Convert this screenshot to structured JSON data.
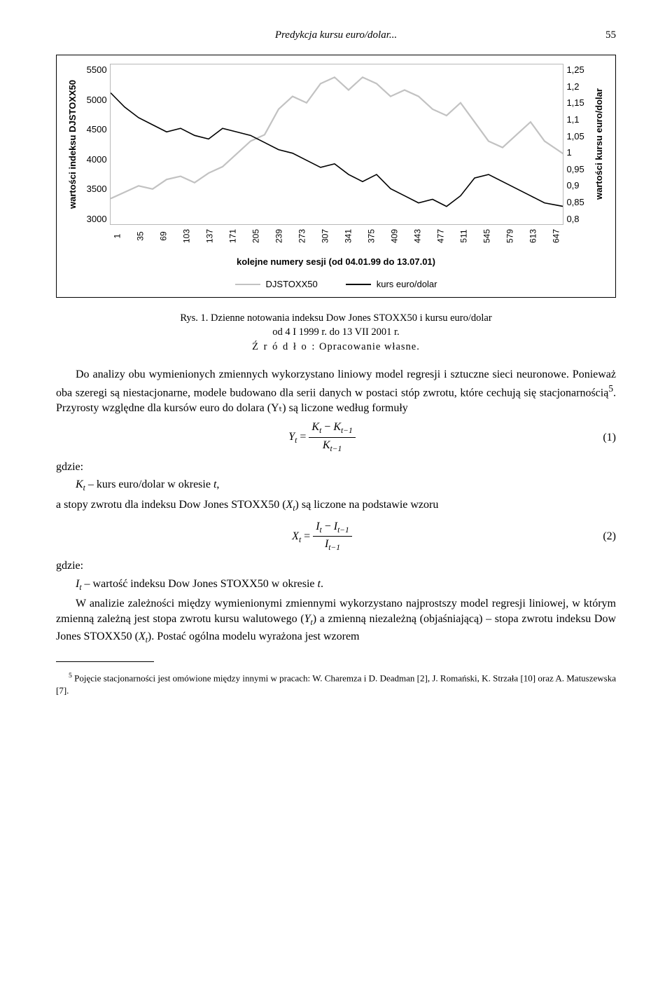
{
  "header": {
    "running_title": "Predykcja kursu euro/dolar...",
    "page_number": "55"
  },
  "chart": {
    "type": "line",
    "y_left": {
      "label": "wartości indeksu DJSTOXX50",
      "ticks": [
        "5500",
        "5000",
        "4500",
        "4000",
        "3500",
        "3000"
      ],
      "min": 3000,
      "max": 5500
    },
    "y_right": {
      "label": "wartości kursu euro/dolar",
      "ticks": [
        "1,25",
        "1,2",
        "1,15",
        "1,1",
        "1,05",
        "1",
        "0,95",
        "0,9",
        "0,85",
        "0,8"
      ],
      "min": 0.8,
      "max": 1.25
    },
    "x_ticks": [
      "1",
      "35",
      "69",
      "103",
      "137",
      "171",
      "205",
      "239",
      "273",
      "307",
      "341",
      "375",
      "409",
      "443",
      "477",
      "511",
      "545",
      "579",
      "613",
      "647"
    ],
    "x_axis_label": "kolejne numery sesji (od 04.01.99 do 13.07.01)",
    "series": [
      {
        "name": "DJSTOXX50",
        "color": "#c2c2c2",
        "width": 2.2,
        "x": [
          0,
          20,
          40,
          60,
          80,
          100,
          120,
          140,
          160,
          180,
          200,
          220,
          240,
          260,
          280,
          300,
          320,
          340,
          360,
          380,
          400,
          420,
          440,
          460,
          480,
          500,
          520,
          540,
          560,
          580,
          600,
          620,
          647
        ],
        "y_axis": "left",
        "y": [
          3400,
          3500,
          3600,
          3550,
          3700,
          3750,
          3650,
          3800,
          3900,
          4100,
          4300,
          4400,
          4800,
          5000,
          4900,
          5200,
          5300,
          5100,
          5300,
          5200,
          5000,
          5100,
          5000,
          4800,
          4700,
          4900,
          4600,
          4300,
          4200,
          4400,
          4600,
          4300,
          4100
        ]
      },
      {
        "name": "kurs euro/dolar",
        "color": "#000000",
        "width": 1.6,
        "x": [
          0,
          20,
          40,
          60,
          80,
          100,
          120,
          140,
          160,
          180,
          200,
          220,
          240,
          260,
          280,
          300,
          320,
          340,
          360,
          380,
          400,
          420,
          440,
          460,
          480,
          500,
          520,
          540,
          560,
          580,
          600,
          620,
          647
        ],
        "y_axis": "right",
        "y": [
          1.17,
          1.13,
          1.1,
          1.08,
          1.06,
          1.07,
          1.05,
          1.04,
          1.07,
          1.06,
          1.05,
          1.03,
          1.01,
          1.0,
          0.98,
          0.96,
          0.97,
          0.94,
          0.92,
          0.94,
          0.9,
          0.88,
          0.86,
          0.87,
          0.85,
          0.88,
          0.93,
          0.94,
          0.92,
          0.9,
          0.88,
          0.86,
          0.85
        ]
      }
    ],
    "legend": [
      {
        "label": "DJSTOXX50",
        "color": "#c2c2c2"
      },
      {
        "label": "kurs euro/dolar",
        "color": "#000000"
      }
    ],
    "background_color": "#ffffff",
    "border_color": "#b8b8b8"
  },
  "figure_caption": {
    "line1": "Rys. 1. Dzienne notowania indeksu Dow Jones STOXX50 i kursu euro/dolar",
    "line2": "od 4 I 1999 r. do 13 VII 2001 r.",
    "source_label": "Ź r ó d ł o :",
    "source_text": "Opracowanie własne."
  },
  "body": {
    "para1": "Do analizy obu wymienionych zmiennych wykorzystano liniowy model regresji i sztuczne sieci neuronowe. Ponieważ oba szeregi są niestacjonarne, modele budowano dla serii danych w postaci stóp zwrotu, które cechują się stacjonarnością",
    "para1_fn_mark": "5",
    "para1_cont": ". Przyrosty względne dla kursów euro do dolara (Yₜ) są liczone według formuły",
    "eq1_num": "(1)",
    "where": "gdzie:",
    "k_def": "Kₜ – kurs euro/dolar w okresie t,",
    "para2": "a stopy zwrotu dla indeksu Dow Jones STOXX50 (Xₜ) są liczone na podstawie wzoru",
    "eq2_num": "(2)",
    "i_def": "Iₜ – wartość indeksu Dow Jones STOXX50 w okresie t.",
    "para3": "W analizie zależności między wymienionymi zmiennymi wykorzystano najprostszy model regresji liniowej, w którym zmienną zależną jest stopa zwrotu kursu walutowego (Yₜ) a zmienną niezależną (objaśniającą) – stopa zwrotu indeksu Dow Jones STOXX50 (Xₜ). Postać ogólna modelu wyrażona jest wzorem"
  },
  "footnote": {
    "mark": "5",
    "text": " Pojęcie stacjonarności jest omówione między innymi w pracach: W. Charemza i D. Deadman [2], J. Romański, K. Strzała [10] oraz A. Matuszewska [7]."
  }
}
